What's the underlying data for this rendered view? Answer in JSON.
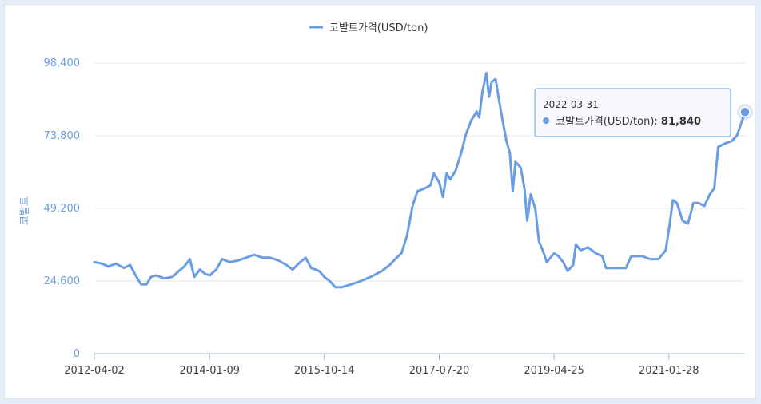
{
  "chart_data": {
    "type": "line",
    "title": "",
    "xlabel": "",
    "ylabel": "코발트",
    "ylim": [
      0,
      98400
    ],
    "yticks": [
      0,
      24600,
      49200,
      73800,
      98400
    ],
    "ytick_labels": [
      "0",
      "24,600",
      "49,200",
      "73,800",
      "98,400"
    ],
    "xtick_labels": [
      "2012-04-02",
      "2014-01-09",
      "2015-10-14",
      "2017-07-20",
      "2019-04-25",
      "2021-01-28"
    ],
    "x_range": [
      "2012-04-02",
      "2022-03-31"
    ],
    "legend_position": "top-center",
    "grid": true,
    "series": [
      {
        "name": "코발트가격(USD/ton)",
        "color": "#6a9de3",
        "points": [
          [
            "2012-04-02",
            31000
          ],
          [
            "2012-05-15",
            30500
          ],
          [
            "2012-06-20",
            29500
          ],
          [
            "2012-08-01",
            30500
          ],
          [
            "2012-09-15",
            29000
          ],
          [
            "2012-10-20",
            30000
          ],
          [
            "2012-11-20",
            26500
          ],
          [
            "2012-12-20",
            23500
          ],
          [
            "2013-01-20",
            23500
          ],
          [
            "2013-02-15",
            26000
          ],
          [
            "2013-03-15",
            26500
          ],
          [
            "2013-05-01",
            25500
          ],
          [
            "2013-06-15",
            26000
          ],
          [
            "2013-07-20",
            28000
          ],
          [
            "2013-08-20",
            29500
          ],
          [
            "2013-09-20",
            32000
          ],
          [
            "2013-10-15",
            26000
          ],
          [
            "2013-11-15",
            28500
          ],
          [
            "2013-12-15",
            27000
          ],
          [
            "2014-01-09",
            26500
          ],
          [
            "2014-02-15",
            28500
          ],
          [
            "2014-03-20",
            32000
          ],
          [
            "2014-05-01",
            31000
          ],
          [
            "2014-06-15",
            31500
          ],
          [
            "2014-08-01",
            32500
          ],
          [
            "2014-09-15",
            33500
          ],
          [
            "2014-11-01",
            32500
          ],
          [
            "2014-12-15",
            32500
          ],
          [
            "2015-02-01",
            31500
          ],
          [
            "2015-03-15",
            30000
          ],
          [
            "2015-04-20",
            28500
          ],
          [
            "2015-06-01",
            31000
          ],
          [
            "2015-07-01",
            32500
          ],
          [
            "2015-08-01",
            29000
          ],
          [
            "2015-09-15",
            28000
          ],
          [
            "2015-10-14",
            26000
          ],
          [
            "2015-11-15",
            24500
          ],
          [
            "2015-12-15",
            22500
          ],
          [
            "2016-01-20",
            22500
          ],
          [
            "2016-03-15",
            23500
          ],
          [
            "2016-05-01",
            24500
          ],
          [
            "2016-07-01",
            26000
          ],
          [
            "2016-09-01",
            28000
          ],
          [
            "2016-10-15",
            30000
          ],
          [
            "2016-11-15",
            32000
          ],
          [
            "2016-12-20",
            34000
          ],
          [
            "2017-01-20",
            40000
          ],
          [
            "2017-02-20",
            50000
          ],
          [
            "2017-03-20",
            55000
          ],
          [
            "2017-05-01",
            56000
          ],
          [
            "2017-06-01",
            57000
          ],
          [
            "2017-06-20",
            61000
          ],
          [
            "2017-07-20",
            58000
          ],
          [
            "2017-08-10",
            53000
          ],
          [
            "2017-08-30",
            61000
          ],
          [
            "2017-09-20",
            59000
          ],
          [
            "2017-10-20",
            62000
          ],
          [
            "2017-11-20",
            68000
          ],
          [
            "2017-12-15",
            74000
          ],
          [
            "2018-01-15",
            79000
          ],
          [
            "2018-02-15",
            82000
          ],
          [
            "2018-03-01",
            80000
          ],
          [
            "2018-03-20",
            89000
          ],
          [
            "2018-04-10",
            95000
          ],
          [
            "2018-04-25",
            87000
          ],
          [
            "2018-05-10",
            92000
          ],
          [
            "2018-06-01",
            93000
          ],
          [
            "2018-06-20",
            86000
          ],
          [
            "2018-07-10",
            79000
          ],
          [
            "2018-08-01",
            72000
          ],
          [
            "2018-08-20",
            68000
          ],
          [
            "2018-09-05",
            55000
          ],
          [
            "2018-09-20",
            65000
          ],
          [
            "2018-10-20",
            63000
          ],
          [
            "2018-11-10",
            56000
          ],
          [
            "2018-11-25",
            45000
          ],
          [
            "2018-12-15",
            54000
          ],
          [
            "2019-01-10",
            49000
          ],
          [
            "2019-01-30",
            38000
          ],
          [
            "2019-02-20",
            35000
          ],
          [
            "2019-03-15",
            31000
          ],
          [
            "2019-04-25",
            34000
          ],
          [
            "2019-05-20",
            33000
          ],
          [
            "2019-06-15",
            31000
          ],
          [
            "2019-07-10",
            28000
          ],
          [
            "2019-08-10",
            30000
          ],
          [
            "2019-08-25",
            37000
          ],
          [
            "2019-09-20",
            35000
          ],
          [
            "2019-11-01",
            36000
          ],
          [
            "2019-12-15",
            34000
          ],
          [
            "2020-01-20",
            33000
          ],
          [
            "2020-02-10",
            29000
          ],
          [
            "2020-04-01",
            29000
          ],
          [
            "2020-06-01",
            29000
          ],
          [
            "2020-07-01",
            33000
          ],
          [
            "2020-09-01",
            33000
          ],
          [
            "2020-10-15",
            32000
          ],
          [
            "2020-12-01",
            32000
          ],
          [
            "2021-01-10",
            35000
          ],
          [
            "2021-01-28",
            42000
          ],
          [
            "2021-02-20",
            52000
          ],
          [
            "2021-03-15",
            51000
          ],
          [
            "2021-04-15",
            45000
          ],
          [
            "2021-05-15",
            44000
          ],
          [
            "2021-06-15",
            51000
          ],
          [
            "2021-07-15",
            51000
          ],
          [
            "2021-08-15",
            50000
          ],
          [
            "2021-09-15",
            54000
          ],
          [
            "2021-10-10",
            56000
          ],
          [
            "2021-11-01",
            70000
          ],
          [
            "2021-12-01",
            71000
          ],
          [
            "2022-01-15",
            72000
          ],
          [
            "2022-02-15",
            74000
          ],
          [
            "2022-03-31",
            81840
          ]
        ]
      }
    ]
  },
  "tooltip": {
    "date": "2022-03-31",
    "series_label": "코발트가격(USD/ton): ",
    "value": "81,840"
  }
}
